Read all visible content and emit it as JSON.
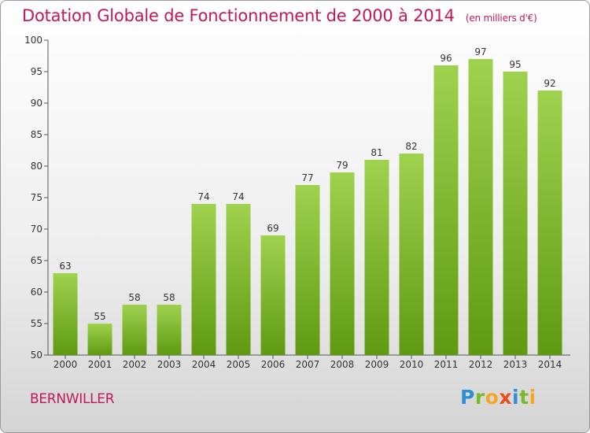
{
  "header": {
    "title": "Dotation Globale de Fonctionnement de 2000 à 2014",
    "unit_note": "(en milliers d'€)"
  },
  "footer": {
    "commune": "BERNWILLER",
    "logo_text": "Proxiti"
  },
  "colors": {
    "title": "#c2185b",
    "bar_light": "#9fd24e",
    "bar_dark": "#5f9a12",
    "logo_p": "#2f8fd0",
    "logo_r": "#7ab929",
    "logo_o": "#f5a623",
    "logo_x": "#e94e1b",
    "logo_i": "#2f8fd0",
    "logo_t": "#7ab929",
    "logo_i2": "#f5a623"
  },
  "chart_data": {
    "type": "bar",
    "title": "Dotation Globale de Fonctionnement de 2000 à 2014",
    "subtitle": "(en milliers d'€)",
    "xlabel": "",
    "ylabel": "",
    "categories": [
      "2000",
      "2001",
      "2002",
      "2003",
      "2004",
      "2005",
      "2006",
      "2007",
      "2008",
      "2009",
      "2010",
      "2011",
      "2012",
      "2013",
      "2014"
    ],
    "values": [
      63,
      55,
      58,
      58,
      74,
      74,
      69,
      77,
      79,
      81,
      82,
      96,
      97,
      95,
      92
    ],
    "ylim": [
      50,
      100
    ],
    "yticks": [
      50,
      55,
      60,
      65,
      70,
      75,
      80,
      85,
      90,
      95,
      100
    ],
    "grid": false,
    "legend": "none"
  }
}
